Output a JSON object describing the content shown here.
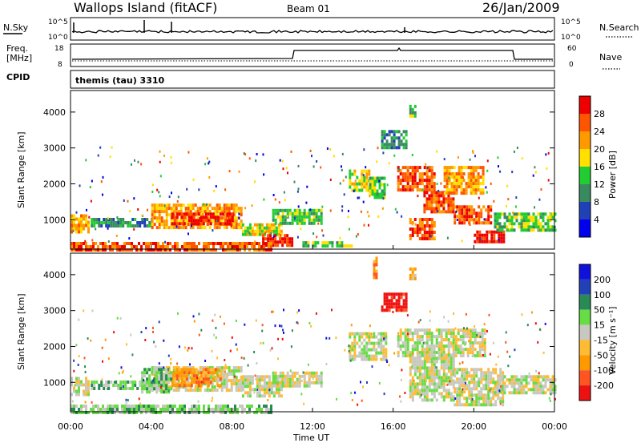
{
  "header": {
    "site": "Wallops Island (fitACF)",
    "beam": "Beam 01",
    "date": "26/Jan/2009"
  },
  "nsky": {
    "label": "N.Sky",
    "ticks": [
      "10^5",
      "10^0"
    ],
    "right_label": "N.Search",
    "right_ticks": [
      "10^5",
      "10^0"
    ]
  },
  "freq": {
    "label_line1": "Freq.",
    "label_line2": "[MHz]",
    "ticks": [
      "18",
      "8"
    ],
    "right_label": "Nave",
    "right_ticks": [
      "60",
      "0"
    ]
  },
  "cpid": {
    "label": "CPID",
    "value": "themis (tau) 3310"
  },
  "axes": {
    "ylabel": "Slant Range [km]",
    "yticks": [
      1000,
      2000,
      3000,
      4000
    ],
    "xlabel": "Time UT",
    "xticks": [
      "00:00",
      "04:00",
      "08:00",
      "12:00",
      "16:00",
      "20:00",
      "00:00"
    ]
  },
  "power_bar": {
    "label": "Power [dB]",
    "ticks": [
      "28",
      "24",
      "20",
      "16",
      "12",
      "8",
      "4"
    ],
    "colors": [
      "#0000ee",
      "#2040b8",
      "#3a8a60",
      "#22cc33",
      "#ffe000",
      "#ff9900",
      "#ff5500",
      "#ee0000"
    ]
  },
  "velocity_bar": {
    "label": "Velocity [m s⁻¹]",
    "ticks": [
      "200",
      "100",
      "50",
      "15",
      "-15",
      "-50",
      "-100",
      "-200"
    ],
    "colors": [
      "#ee1111",
      "#ff5522",
      "#ff9900",
      "#ffbb33",
      "#c8c8c0",
      "#66dd44",
      "#2a8a55",
      "#2240b8",
      "#1111dd"
    ]
  },
  "chart_data": [
    {
      "type": "heatmap",
      "name": "power",
      "x_unit": "hours UT",
      "y_unit": "km",
      "xlim": [
        0,
        24
      ],
      "ylim": [
        180,
        4600
      ],
      "blobs": [
        {
          "t0": 0.0,
          "t1": 0.9,
          "r0": 620,
          "r1": 1150,
          "level": 5
        },
        {
          "t0": 1.0,
          "t1": 4.0,
          "r0": 800,
          "r1": 1050,
          "level": 2
        },
        {
          "t0": 4.0,
          "t1": 8.5,
          "r0": 750,
          "r1": 1450,
          "level": 5
        },
        {
          "t0": 5.0,
          "t1": 8.0,
          "r0": 850,
          "r1": 1200,
          "level": 7
        },
        {
          "t0": 8.5,
          "t1": 10.5,
          "r0": 600,
          "r1": 900,
          "level": 4
        },
        {
          "t0": 9.5,
          "t1": 11.0,
          "r0": 250,
          "r1": 600,
          "level": 7
        },
        {
          "t0": 10.0,
          "t1": 12.5,
          "r0": 900,
          "r1": 1300,
          "level": 3
        },
        {
          "t0": 0.0,
          "t1": 10.0,
          "r0": 200,
          "r1": 380,
          "level": 6
        },
        {
          "t0": 11.5,
          "t1": 14.0,
          "r0": 250,
          "r1": 400,
          "level": 3
        },
        {
          "t0": 13.8,
          "t1": 14.8,
          "r0": 1800,
          "r1": 2400,
          "level": 4
        },
        {
          "t0": 14.8,
          "t1": 15.6,
          "r0": 1600,
          "r1": 2200,
          "level": 3
        },
        {
          "t0": 15.4,
          "t1": 16.6,
          "r0": 3000,
          "r1": 3500,
          "level": 2
        },
        {
          "t0": 16.2,
          "t1": 18.0,
          "r0": 1800,
          "r1": 2500,
          "level": 6
        },
        {
          "t0": 17.5,
          "t1": 19.0,
          "r0": 1200,
          "r1": 1800,
          "level": 6
        },
        {
          "t0": 16.8,
          "t1": 18.0,
          "r0": 500,
          "r1": 1050,
          "level": 6
        },
        {
          "t0": 18.5,
          "t1": 20.5,
          "r0": 1700,
          "r1": 2500,
          "level": 5
        },
        {
          "t0": 19.0,
          "t1": 20.8,
          "r0": 900,
          "r1": 1400,
          "level": 6
        },
        {
          "t0": 20.0,
          "t1": 21.5,
          "r0": 400,
          "r1": 700,
          "level": 7
        },
        {
          "t0": 21.0,
          "t1": 24.0,
          "r0": 700,
          "r1": 1200,
          "level": 3
        },
        {
          "t0": 16.8,
          "t1": 17.1,
          "r0": 3900,
          "r1": 4200,
          "level": 3
        }
      ]
    },
    {
      "type": "heatmap",
      "name": "velocity",
      "x_unit": "hours UT",
      "y_unit": "km",
      "xlim": [
        0,
        24
      ],
      "ylim": [
        180,
        4600
      ],
      "blobs": [
        {
          "t0": 0.0,
          "t1": 0.9,
          "r0": 620,
          "r1": 1150,
          "level": 4
        },
        {
          "t0": 1.0,
          "t1": 4.0,
          "r0": 800,
          "r1": 1050,
          "level": 5
        },
        {
          "t0": 4.0,
          "t1": 8.5,
          "r0": 750,
          "r1": 1450,
          "level": 4
        },
        {
          "t0": 5.0,
          "t1": 7.5,
          "r0": 900,
          "r1": 1400,
          "level": 2
        },
        {
          "t0": 3.5,
          "t1": 5.0,
          "r0": 750,
          "r1": 1400,
          "level": 5
        },
        {
          "t0": 8.5,
          "t1": 10.5,
          "r0": 600,
          "r1": 1200,
          "level": 4
        },
        {
          "t0": 10.0,
          "t1": 12.5,
          "r0": 900,
          "r1": 1300,
          "level": 4
        },
        {
          "t0": 0.0,
          "t1": 10.0,
          "r0": 200,
          "r1": 380,
          "level": 5
        },
        {
          "t0": 13.8,
          "t1": 15.6,
          "r0": 1600,
          "r1": 2400,
          "level": 4
        },
        {
          "t0": 15.4,
          "t1": 16.6,
          "r0": 3000,
          "r1": 3500,
          "level": 0
        },
        {
          "t0": 16.2,
          "t1": 20.5,
          "r0": 1700,
          "r1": 2500,
          "level": 4
        },
        {
          "t0": 16.8,
          "t1": 19.0,
          "r0": 500,
          "r1": 1800,
          "level": 4
        },
        {
          "t0": 19.0,
          "t1": 21.5,
          "r0": 400,
          "r1": 1400,
          "level": 4
        },
        {
          "t0": 21.0,
          "t1": 24.0,
          "r0": 700,
          "r1": 1200,
          "level": 4
        },
        {
          "t0": 15.0,
          "t1": 15.2,
          "r0": 3900,
          "r1": 4500,
          "level": 2
        },
        {
          "t0": 16.8,
          "t1": 17.1,
          "r0": 3900,
          "r1": 4200,
          "level": 3
        }
      ]
    }
  ]
}
